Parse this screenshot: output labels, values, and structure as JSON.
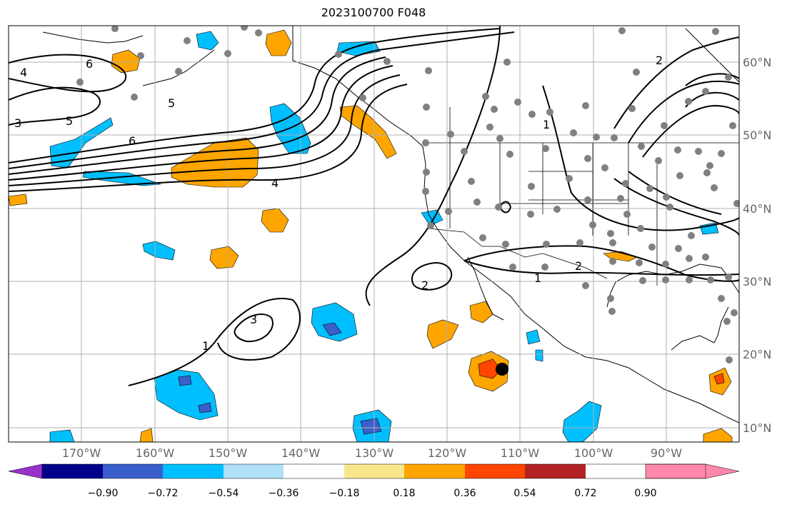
{
  "title": "2023100700 F048",
  "map": {
    "projection": "PlateCarree",
    "extent": {
      "lon_min": -180,
      "lon_max": -80,
      "lat_min": 8,
      "lat_max": 65
    },
    "lon_ticks": [
      "170°W",
      "160°W",
      "150°W",
      "140°W",
      "130°W",
      "120°W",
      "110°W",
      "100°W",
      "90°W"
    ],
    "lat_ticks": [
      "10°N",
      "20°N",
      "30°N",
      "40°N",
      "50°N",
      "60°N"
    ],
    "gridlines": true,
    "contour_labels": [
      "6",
      "5",
      "4",
      "3",
      "2",
      "1"
    ],
    "storm_marker": {
      "lon": -112.5,
      "lat": 18,
      "color": "#000000"
    }
  },
  "colorbar": {
    "extend": "both",
    "ticks": [
      "−0.90",
      "−0.72",
      "−0.54",
      "−0.36",
      "−0.18",
      "0.18",
      "0.36",
      "0.54",
      "0.72",
      "0.90"
    ],
    "colors": [
      "#9932cc",
      "#00008b",
      "#3a5fcd",
      "#00bfff",
      "#b0e0f8",
      "#ffffff",
      "#f8e68c",
      "#ffa500",
      "#ff4500",
      "#b22222",
      "#ff88aa"
    ]
  }
}
